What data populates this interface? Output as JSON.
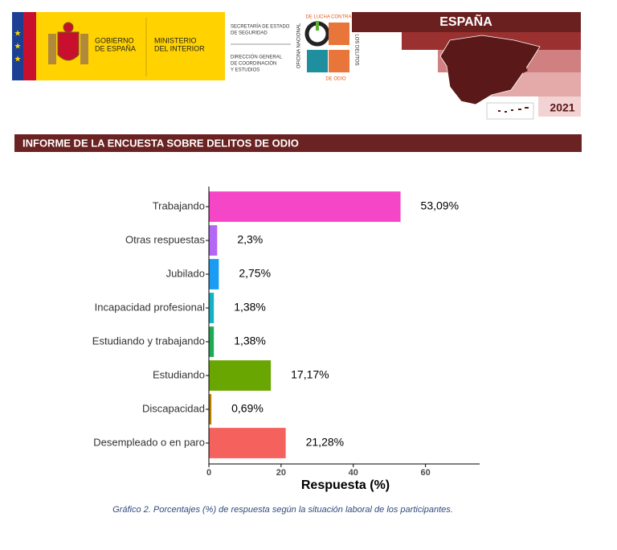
{
  "header": {
    "government": [
      "GOBIERNO",
      "DE ESPAÑA"
    ],
    "ministry": [
      "MINISTERIO",
      "DEL INTERIOR"
    ],
    "secretariat": [
      "SECRETARÍA DE ESTADO",
      "DE SEGURIDAD"
    ],
    "directorate": [
      "DIRECCIÓN GENERAL",
      "DE COORDINACIÓN",
      "Y ESTUDIOS"
    ],
    "office_left": "OFICINA NACIONAL",
    "office_top": "DE LUCHA CONTRA",
    "office_right": "LOS DELITOS",
    "office_bottom": "DE ODIO",
    "country": "ESPAÑA",
    "year": "2021"
  },
  "banner": "INFORME DE LA ENCUESTA SOBRE DELITOS DE ODIO",
  "chart_data": {
    "type": "bar",
    "orientation": "horizontal",
    "categories": [
      "Trabajando",
      "Otras respuestas",
      "Jubilado",
      "Incapacidad profesional",
      "Estudiando y trabajando",
      "Estudiando",
      "Discapacidad",
      "Desempleado o en paro"
    ],
    "values": [
      53.09,
      2.3,
      2.75,
      1.38,
      1.38,
      17.17,
      0.69,
      21.28
    ],
    "value_labels": [
      "53,09%",
      "2,3%",
      "2,75%",
      "1,38%",
      "1,38%",
      "17,17%",
      "0,69%",
      "21,28%"
    ],
    "colors": [
      "#f546c8",
      "#b466f4",
      "#1b9cf4",
      "#12b2c4",
      "#1fa955",
      "#6aa602",
      "#b47d04",
      "#f5625d"
    ],
    "xlabel": "Respuesta (%)",
    "xlim": [
      0,
      75
    ],
    "xticks": [
      0,
      20,
      40,
      60
    ]
  },
  "caption": "Gráfico 2. Porcentajes (%) de respuesta según la situación laboral de los participantes."
}
